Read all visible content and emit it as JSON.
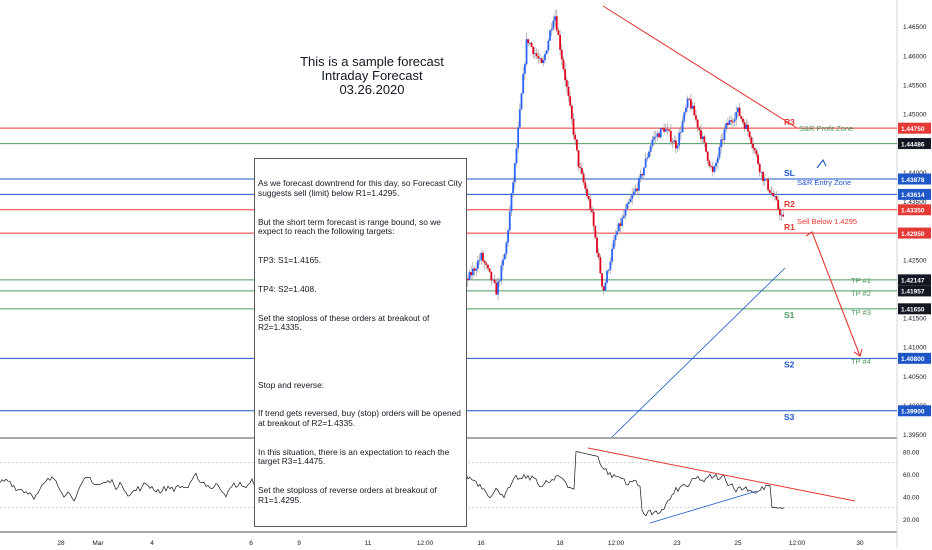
{
  "title": [
    "This is a sample forecast",
    "Intraday Forecast",
    "03.26.2020"
  ],
  "colors": {
    "up": "#2962ff",
    "down": "#e0001b",
    "wick": "#9e9e9e",
    "resistance": "#e53935",
    "support": "#1e56c8",
    "green": "#4c9a5c",
    "axis_text": "#131722",
    "rsi": "#131722"
  },
  "note": [
    "As we forecast downtrend for this day, so Forecast City suggests sell (limit) below R1=1.4295.",
    "But the short term forecast is range bound, so we expect to reach the following targets:",
    "TP3: S1=1.4165.",
    "TP4: S2=1.408.",
    "Set the stoploss of these orders at breakout of R2=1.4335.",
    "",
    "Stop and reverse:",
    "If trend gets reversed, buy (stop) orders will be opened at breakout of R2=1.4335.",
    "In this situation, there is an expectation to reach the target R3=1.4475.",
    "Set the stoploss of reverse orders at breakout of R1=1.4295."
  ],
  "chart_data": {
    "type": "candlestick",
    "price_axis": {
      "ticks": [
        "1.46500",
        "1.46000",
        "1.45500",
        "1.45000",
        "1.44500",
        "1.44000",
        "1.43500",
        "1.43000",
        "1.42500",
        "1.42000",
        "1.41500",
        "1.41000",
        "1.40500",
        "1.40000",
        "1.39500"
      ],
      "range": [
        1.3945,
        1.4695
      ]
    },
    "time_axis": {
      "labels": [
        "28",
        "Mar",
        "4",
        "6",
        "9",
        "11",
        "12:00",
        "16",
        "18",
        "12:00",
        "23",
        "25",
        "12:00",
        "30"
      ]
    },
    "price_points": [
      {
        "t": 8,
        "p": 1.3885
      },
      {
        "t": 9,
        "p": 1.3905
      },
      {
        "t": 10,
        "p": 1.3935
      },
      {
        "t": 11,
        "p": 1.3965
      },
      {
        "t": 11.5,
        "p": 1.402
      },
      {
        "t": 12,
        "p": 1.41
      },
      {
        "t": 12.5,
        "p": 1.416
      },
      {
        "t": 13,
        "p": 1.421
      },
      {
        "t": 13.5,
        "p": 1.4255
      },
      {
        "t": 14,
        "p": 1.4195
      },
      {
        "t": 14.3,
        "p": 1.4265
      },
      {
        "t": 14.6,
        "p": 1.441
      },
      {
        "t": 15,
        "p": 1.463
      },
      {
        "t": 15.5,
        "p": 1.458
      },
      {
        "t": 15.9,
        "p": 1.4675
      },
      {
        "t": 16.3,
        "p": 1.4545
      },
      {
        "t": 16.7,
        "p": 1.441
      },
      {
        "t": 17.1,
        "p": 1.4335
      },
      {
        "t": 17.5,
        "p": 1.4195
      },
      {
        "t": 17.9,
        "p": 1.429
      },
      {
        "t": 18.3,
        "p": 1.434
      },
      {
        "t": 18.7,
        "p": 1.4385
      },
      {
        "t": 19.1,
        "p": 1.4455
      },
      {
        "t": 19.5,
        "p": 1.4475
      },
      {
        "t": 19.9,
        "p": 1.4445
      },
      {
        "t": 20.3,
        "p": 1.4525
      },
      {
        "t": 20.7,
        "p": 1.4465
      },
      {
        "t": 21.1,
        "p": 1.4395
      },
      {
        "t": 21.5,
        "p": 1.4475
      },
      {
        "t": 21.9,
        "p": 1.4505
      },
      {
        "t": 22.3,
        "p": 1.4465
      },
      {
        "t": 22.7,
        "p": 1.4395
      },
      {
        "t": 23.1,
        "p": 1.4355
      },
      {
        "t": 23.5,
        "p": 1.4305
      },
      {
        "t": 23.8,
        "p": 1.4225
      },
      {
        "t": 24.0,
        "p": 1.4195
      }
    ],
    "levels": [
      {
        "name": "R3",
        "price": 1.4475,
        "kind": "resistance",
        "label": "R3",
        "tag": "1.44750"
      },
      {
        "name": "green-1",
        "price": 1.44486,
        "kind": "green",
        "label": "",
        "tag": "1.44486"
      },
      {
        "name": "SL",
        "price": 1.43878,
        "kind": "support",
        "label": "SL",
        "tag": "1.43878"
      },
      {
        "name": "blue-2",
        "price": 1.43614,
        "kind": "support",
        "label": "",
        "tag": "1.43614"
      },
      {
        "name": "R2",
        "price": 1.4335,
        "kind": "resistance",
        "label": "R2",
        "tag": "1.43350"
      },
      {
        "name": "R1",
        "price": 1.4295,
        "kind": "resistance",
        "label": "R1",
        "tag": "1.42950"
      },
      {
        "name": "TP1",
        "price": 1.42147,
        "kind": "green",
        "label": "",
        "tag": "1.42147"
      },
      {
        "name": "TP2",
        "price": 1.41957,
        "kind": "green",
        "label": "",
        "tag": "1.41957"
      },
      {
        "name": "S1",
        "price": 1.4165,
        "kind": "green",
        "label": "S1",
        "tag": "1.41650"
      },
      {
        "name": "S2",
        "price": 1.408,
        "kind": "support",
        "label": "S2",
        "tag": "1.40800"
      },
      {
        "name": "S3",
        "price": 1.399,
        "kind": "support",
        "label": "S3",
        "tag": "1.39900"
      }
    ],
    "annotations": {
      "profit_zone": "S&R Profit Zone",
      "entry_zone": "S&R Entry Zone",
      "sell_below": "Sell Below 1.4295",
      "tp1": "TP #1",
      "tp2": "TP #2",
      "tp3": "TP #3",
      "tp4": "TP #4"
    },
    "rsi": {
      "ticks": [
        "80.00",
        "60.00",
        "40.00",
        "20.00"
      ],
      "range": [
        10,
        90
      ]
    }
  }
}
